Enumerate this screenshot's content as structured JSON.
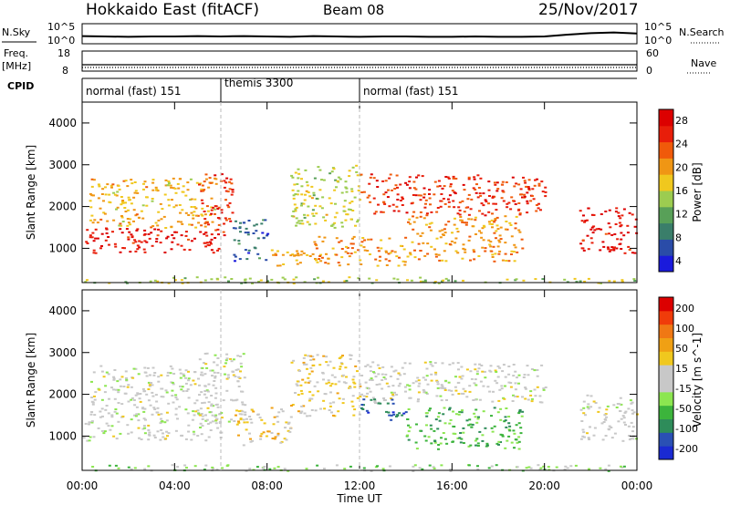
{
  "header": {
    "station": "Hokkaido East (fitACF)",
    "beam": "Beam 08",
    "date": "25/Nov/2017"
  },
  "strip_panels": {
    "nsky_label": "N.Sky",
    "nsearch_label": "N.Search",
    "noise_ticks_left": [
      "10^5",
      "10^0"
    ],
    "noise_ticks_right": [
      "10^5",
      "10^0"
    ],
    "freq_label_top": "Freq.",
    "freq_label_bottom": "[MHz]",
    "freq_ticks": [
      "18",
      "8"
    ],
    "nave_label": "Nave",
    "nave_ticks": [
      "60",
      "0"
    ],
    "cpid_label": "CPID"
  },
  "cpid_segments": [
    {
      "label": "normal (fast) 151",
      "start": 0,
      "end": 6
    },
    {
      "label": "themis 3300",
      "start": 6,
      "end": 12
    },
    {
      "label": "normal (fast) 151",
      "start": 12,
      "end": 24
    }
  ],
  "colors": {
    "power_scale": [
      "#1a1adc",
      "#2a4ca8",
      "#3a7e6a",
      "#58a058",
      "#9ccc50",
      "#f0c81e",
      "#f09614",
      "#f05a0a",
      "#e81e0a",
      "#dc0000"
    ],
    "velocity_scale": [
      "#1a2ad2",
      "#2a50b4",
      "#2e8c5a",
      "#3cb43c",
      "#8ce650",
      "#c8c8c8",
      "#c8c8c8",
      "#f0c81e",
      "#f0a014",
      "#f07814",
      "#f03c0a",
      "#dc0000"
    ],
    "axis": "#000000",
    "gridline": "#bbbbbb"
  },
  "chart_data": [
    {
      "type": "line",
      "title": "N.Sky / N.Search noise",
      "x": [
        0,
        1,
        2,
        3,
        4,
        5,
        6,
        7,
        8,
        9,
        10,
        11,
        12,
        13,
        14,
        15,
        16,
        17,
        18,
        19,
        20,
        21,
        22,
        23,
        24
      ],
      "series": [
        {
          "values": [
            1.6,
            1.5,
            1.4,
            1.5,
            1.5,
            1.6,
            1.5,
            1.6,
            1.5,
            1.4,
            1.6,
            1.5,
            1.4,
            1.5,
            1.5,
            1.4,
            1.4,
            1.5,
            1.4,
            1.4,
            1.5,
            2.0,
            2.4,
            2.6,
            2.3
          ]
        }
      ],
      "ylim": [
        0,
        5
      ]
    },
    {
      "type": "line",
      "title": "Freq. [MHz] / Nave",
      "x": [
        0,
        24
      ],
      "series": [
        {
          "values": [
            11,
            11
          ]
        },
        {
          "values": [
            9.5,
            9.5
          ]
        }
      ],
      "ylim": [
        8,
        18
      ]
    },
    {
      "type": "heatmap",
      "title": "Power",
      "xlabel": "",
      "ylabel": "Slant Range [km]",
      "x_ticks": [
        "00:00",
        "04:00",
        "08:00",
        "12:00",
        "16:00",
        "20:00",
        "00:00"
      ],
      "y_ticks": [
        "1000",
        "2000",
        "3000",
        "4000"
      ],
      "xlim": [
        0,
        24
      ],
      "ylim": [
        180,
        4500
      ],
      "colorbar_label": "Power [dB]",
      "colorbar_ticks": [
        "28",
        "24",
        "20",
        "16",
        "12",
        "8",
        "4"
      ],
      "colorbar_range": [
        0,
        30
      ],
      "regions": [
        {
          "x": [
            0,
            6
          ],
          "y": [
            900,
            1500
          ],
          "value": 27
        },
        {
          "x": [
            0.3,
            5.8
          ],
          "y": [
            1500,
            2700
          ],
          "value": 18
        },
        {
          "x": [
            5,
            6.5
          ],
          "y": [
            1300,
            2800
          ],
          "value": 25
        },
        {
          "x": [
            6.5,
            8
          ],
          "y": [
            700,
            1700
          ],
          "value": 6
        },
        {
          "x": [
            8,
            10.5
          ],
          "y": [
            600,
            1000
          ],
          "value": 19
        },
        {
          "x": [
            9,
            12
          ],
          "y": [
            1500,
            3000
          ],
          "value": 15
        },
        {
          "x": [
            10,
            14
          ],
          "y": [
            600,
            1300
          ],
          "value": 20
        },
        {
          "x": [
            12,
            20
          ],
          "y": [
            1800,
            2800
          ],
          "value": 25
        },
        {
          "x": [
            14,
            19
          ],
          "y": [
            700,
            1800
          ],
          "value": 20
        },
        {
          "x": [
            21.5,
            24
          ],
          "y": [
            900,
            2000
          ],
          "value": 27
        },
        {
          "x": [
            0,
            24
          ],
          "y": [
            180,
            330
          ],
          "value": 14
        }
      ]
    },
    {
      "type": "heatmap",
      "title": "Velocity",
      "xlabel": "Time UT",
      "ylabel": "Slant Range [km]",
      "x_ticks": [
        "00:00",
        "04:00",
        "08:00",
        "12:00",
        "16:00",
        "20:00",
        "00:00"
      ],
      "y_ticks": [
        "1000",
        "2000",
        "3000",
        "4000"
      ],
      "xlim": [
        0,
        24
      ],
      "ylim": [
        180,
        4500
      ],
      "colorbar_label": "Velocity [m s^-1]",
      "colorbar_ticks": [
        "200",
        "100",
        "50",
        "15",
        "-15",
        "-50",
        "-100",
        "-200"
      ],
      "colorbar_range": [
        -250,
        250
      ],
      "regions": [
        {
          "x": [
            0,
            6
          ],
          "y": [
            900,
            1600
          ],
          "value": 0
        },
        {
          "x": [
            0.3,
            5.8
          ],
          "y": [
            1600,
            2700
          ],
          "value": 0
        },
        {
          "x": [
            5,
            7
          ],
          "y": [
            1300,
            3000
          ],
          "value": 0
        },
        {
          "x": [
            6.5,
            9
          ],
          "y": [
            800,
            1700
          ],
          "value": 60
        },
        {
          "x": [
            9,
            12
          ],
          "y": [
            1500,
            3000
          ],
          "value": 40
        },
        {
          "x": [
            12,
            20
          ],
          "y": [
            1800,
            2800
          ],
          "value": 0
        },
        {
          "x": [
            12,
            14
          ],
          "y": [
            1400,
            1900
          ],
          "value": -180
        },
        {
          "x": [
            14,
            19
          ],
          "y": [
            700,
            1700
          ],
          "value": -100
        },
        {
          "x": [
            21.5,
            24
          ],
          "y": [
            900,
            2000
          ],
          "value": 0
        },
        {
          "x": [
            0,
            24
          ],
          "y": [
            180,
            330
          ],
          "value": -60
        }
      ]
    }
  ]
}
